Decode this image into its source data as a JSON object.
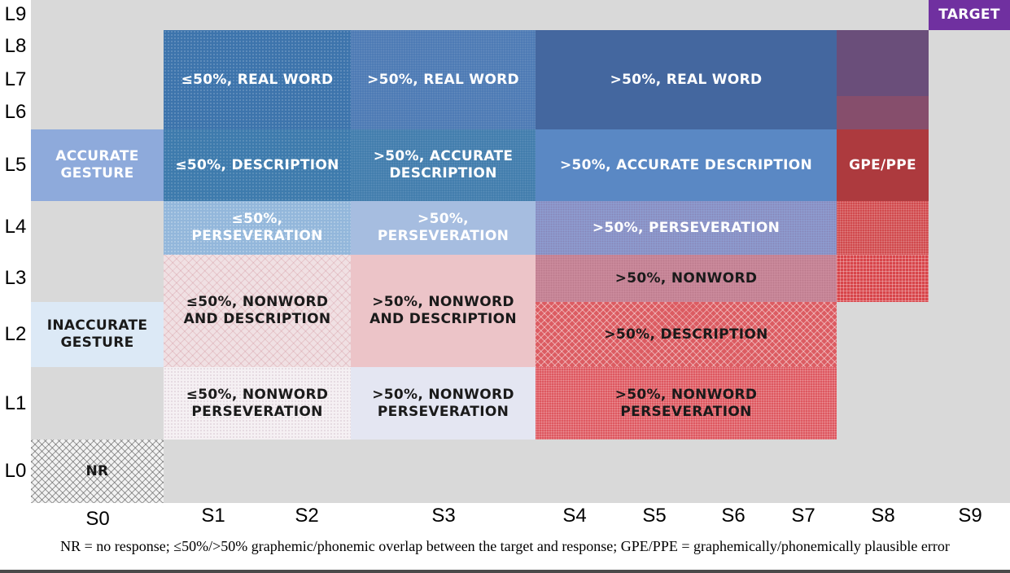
{
  "y_levels": [
    "L9",
    "L8",
    "L7",
    "L6",
    "L5",
    "L4",
    "L3",
    "L2",
    "L1",
    "L0"
  ],
  "x_stages": [
    "S0",
    "S1",
    "S2",
    "S3",
    "S4",
    "S5",
    "S6",
    "S7",
    "S8",
    "S9"
  ],
  "cells": {
    "target": "TARGET",
    "accurate_gesture": "ACCURATE\nGESTURE",
    "inaccurate_gesture": "INACCURATE\nGESTURE",
    "nr": "NR",
    "s1s2_real_word": "≤50%, REAL WORD",
    "s3_real_word": ">50%, REAL WORD",
    "s4s7_real_word": ">50%, REAL WORD",
    "s1s2_description": "≤50%, DESCRIPTION",
    "s3_accurate_description": ">50%, ACCURATE\nDESCRIPTION",
    "s4s7_accurate_description": ">50%, ACCURATE DESCRIPTION",
    "gpe_ppe": "GPE/PPE",
    "s1s2_perseveration": "≤50%,\nPERSEVERATION",
    "s3_perseveration": ">50%,\nPERSEVERATION",
    "s4s7_perseveration": ">50%, PERSEVERATION",
    "s4s7_nonword": ">50%, NONWORD",
    "s1s2_nonword_description": "≤50%, NONWORD\nAND DESCRIPTION",
    "s3_nonword_description": ">50%, NONWORD\nAND DESCRIPTION",
    "s4s7_description": ">50%, DESCRIPTION",
    "s1s2_nonword_perseveration": "≤50%, NONWORD\nPERSEVERATION",
    "s3_nonword_perseveration": ">50%, NONWORD\nPERSEVERATION",
    "s4s7_nonword_perseveration": ">50%, NONWORD\nPERSEVERATION"
  },
  "colors": {
    "background": "#d9d9d9",
    "target": "#7030a0",
    "blue_dark": "#3f66a3",
    "blue_mid": "#5b87c4",
    "blue_light": "#8faadc",
    "blue_pale": "#dbe8f5",
    "red_dark": "#b03a3a",
    "red_mid": "#d9626a",
    "pink_light": "#f0d3d6",
    "lavender": "#e6e6f0"
  },
  "footnote": "NR = no response; ≤50%/>50% graphemic/phonemic overlap between the target and response; GPE/PPE = graphemically/phonemically plausible error"
}
